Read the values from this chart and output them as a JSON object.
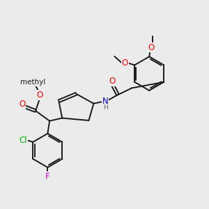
{
  "bg_color": "#ebebeb",
  "bond_color": "#1a1a1a",
  "bond_width": 1.4,
  "atom_colors": {
    "O": "#ff0000",
    "N": "#0000cc",
    "Cl": "#00bb00",
    "F": "#cc00cc",
    "C": "#1a1a1a",
    "H": "#666666"
  },
  "font_size": 8.5,
  "font_size_label": 7.5
}
